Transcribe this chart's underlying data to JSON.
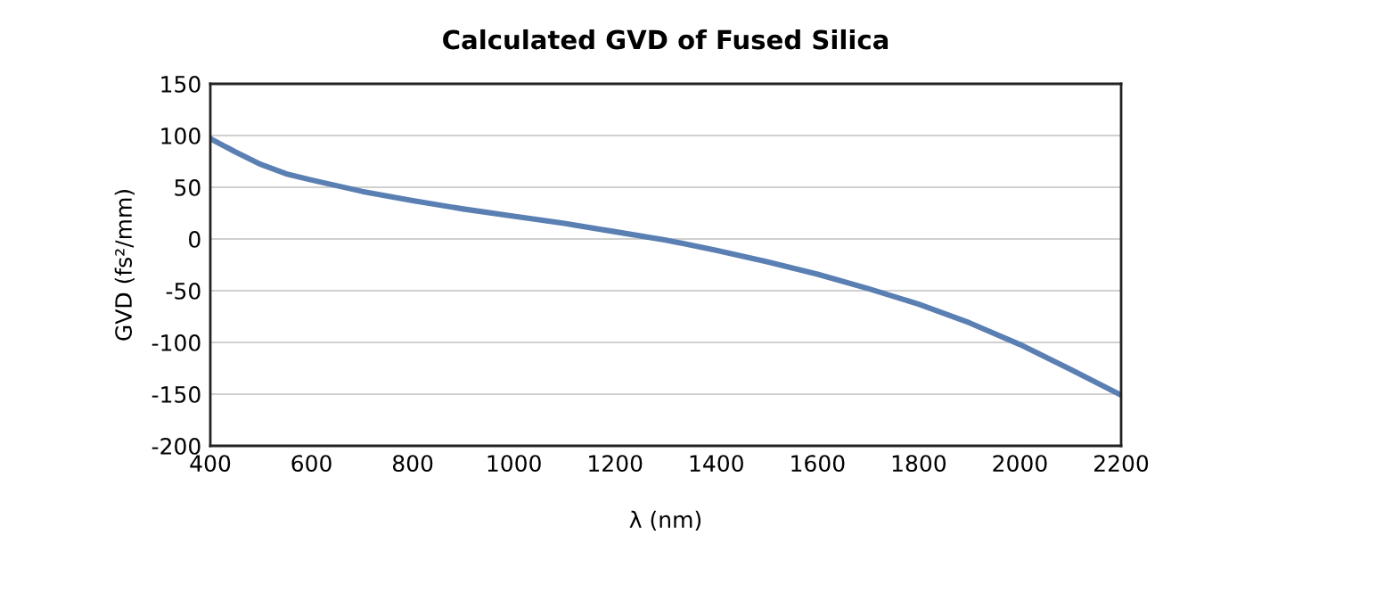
{
  "chart_data": {
    "type": "line",
    "title": "Calculated GVD of Fused Silica",
    "xlabel": "λ (nm)",
    "ylabel": "GVD (fs²/mm)",
    "x": [
      400,
      450,
      500,
      550,
      600,
      700,
      800,
      900,
      1000,
      1100,
      1200,
      1300,
      1400,
      1500,
      1600,
      1700,
      1800,
      1900,
      2000,
      2100,
      2200
    ],
    "series": [
      {
        "color": "#5a7fb3",
        "values": [
          97,
          84,
          72,
          63,
          57,
          46,
          37,
          29,
          22,
          15,
          7,
          -1,
          -11,
          -22,
          -34,
          -48,
          -63,
          -81,
          -102,
          -126,
          -151
        ]
      }
    ],
    "xlim": [
      400,
      2200
    ],
    "xticks": [
      400,
      600,
      800,
      1000,
      1200,
      1400,
      1600,
      1800,
      2000,
      2200
    ],
    "ylim": [
      -200,
      150
    ],
    "yticks": [
      -200,
      -150,
      -100,
      -50,
      0,
      50,
      100,
      150
    ],
    "grid": "y",
    "legend": false,
    "marker": "none",
    "line_style": "solid"
  }
}
